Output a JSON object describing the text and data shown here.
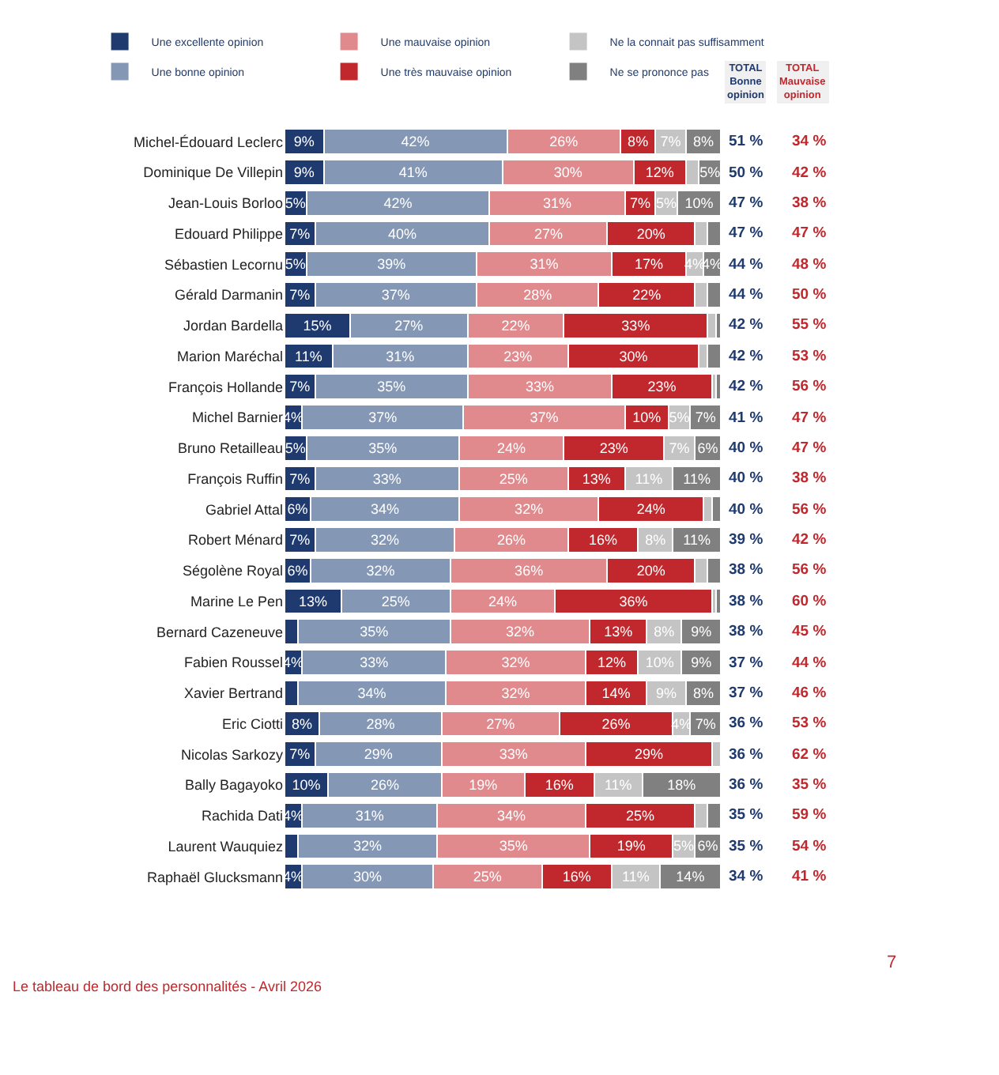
{
  "chart_data": {
    "type": "bar",
    "orientation": "horizontal",
    "stacked": true,
    "legend": "top left",
    "tick_labels": "y",
    "categories": [
      "Michel-Édouard Leclerc",
      "Dominique De Villepin",
      "Jean-Louis Borloo",
      "Edouard Philippe",
      "Sébastien Lecornu",
      "Gérald Darmanin",
      "Jordan Bardella",
      "Marion Maréchal",
      "François Hollande",
      "Michel Barnier",
      "Bruno Retailleau",
      "François Ruffin",
      "Gabriel Attal",
      "Robert Ménard",
      "Ségolène Royal",
      "Marine Le Pen",
      "Bernard Cazeneuve",
      "Fabien Roussel",
      "Xavier Bertrand",
      "Eric Ciotti",
      "Nicolas Sarkozy",
      "Bally Bagayoko",
      "Rachida Dati",
      "Laurent Wauquiez",
      "Raphaël Glucksmann"
    ],
    "series": [
      {
        "name": "Une excellente opinion",
        "color": "#1f3a6e",
        "values": [
          9,
          9,
          5,
          7,
          5,
          7,
          15,
          11,
          7,
          4,
          5,
          7,
          6,
          7,
          6,
          13,
          3,
          4,
          3,
          8,
          7,
          10,
          4,
          3,
          4
        ],
        "value_labels": [
          "9%",
          "9%",
          "5%",
          "7%",
          "5%",
          "7%",
          "15%",
          "11%",
          "7%",
          "4%",
          "5%",
          "7%",
          "6%",
          "7%",
          "6%",
          "13%",
          null,
          "4%",
          null,
          "8%",
          "7%",
          "10%",
          "4%",
          null,
          "4%"
        ]
      },
      {
        "name": "Une bonne opinion",
        "color": "#8497b5",
        "values": [
          42,
          41,
          42,
          40,
          39,
          37,
          27,
          31,
          35,
          37,
          35,
          33,
          34,
          32,
          32,
          25,
          35,
          33,
          34,
          28,
          29,
          26,
          31,
          32,
          30
        ],
        "value_labels": [
          "42%",
          "41%",
          "42%",
          "40%",
          "39%",
          "37%",
          "27%",
          "31%",
          "35%",
          "37%",
          "35%",
          "33%",
          "34%",
          "32%",
          "32%",
          "25%",
          "35%",
          "33%",
          "34%",
          "28%",
          "29%",
          "26%",
          "31%",
          "32%",
          "30%"
        ]
      },
      {
        "name": "Une mauvaise opinion",
        "color": "#e08a8e",
        "values": [
          26,
          30,
          31,
          27,
          31,
          28,
          22,
          23,
          33,
          37,
          24,
          25,
          32,
          26,
          36,
          24,
          32,
          32,
          32,
          27,
          33,
          19,
          34,
          35,
          25
        ],
        "value_labels": [
          "26%",
          "30%",
          "31%",
          "27%",
          "31%",
          "28%",
          "22%",
          "23%",
          "33%",
          "37%",
          "24%",
          "25%",
          "32%",
          "26%",
          "36%",
          "24%",
          "32%",
          "32%",
          "32%",
          "27%",
          "33%",
          "19%",
          "34%",
          "35%",
          "25%"
        ]
      },
      {
        "name": "Une très mauvaise opinion",
        "color": "#c0282d",
        "values": [
          8,
          12,
          7,
          20,
          17,
          22,
          33,
          30,
          23,
          10,
          23,
          13,
          24,
          16,
          20,
          36,
          13,
          12,
          14,
          26,
          29,
          16,
          25,
          19,
          16
        ],
        "value_labels": [
          "8%",
          "12%",
          "7%",
          "20%",
          "17%",
          "22%",
          "33%",
          "30%",
          "23%",
          "10%",
          "23%",
          "13%",
          "24%",
          "16%",
          "20%",
          "36%",
          "13%",
          "12%",
          "14%",
          "26%",
          "29%",
          "16%",
          "25%",
          "19%",
          "16%"
        ]
      },
      {
        "name": "Ne la connait pas suffisamment",
        "color": "#c4c4c4",
        "values": [
          7,
          3,
          5,
          3,
          4,
          3,
          2,
          2,
          1,
          5,
          7,
          11,
          2,
          8,
          3,
          1,
          8,
          10,
          9,
          4,
          2,
          11,
          3,
          5,
          11
        ],
        "value_labels": [
          "7%",
          null,
          "5%",
          null,
          "4%",
          null,
          null,
          null,
          null,
          "5%",
          "7%",
          "11%",
          null,
          "8%",
          null,
          null,
          "8%",
          "10%",
          "9%",
          "4%",
          null,
          "11%",
          null,
          "5%",
          "11%"
        ]
      },
      {
        "name": "Ne se prononce pas",
        "color": "#808080",
        "values": [
          8,
          5,
          10,
          3,
          4,
          3,
          1,
          3,
          1,
          7,
          6,
          11,
          2,
          11,
          3,
          1,
          9,
          9,
          8,
          7,
          null,
          18,
          3,
          6,
          14
        ],
        "value_labels": [
          "8%",
          "5%",
          "10%",
          null,
          "4%",
          null,
          null,
          null,
          null,
          "7%",
          "6%",
          "11%",
          null,
          "11%",
          null,
          null,
          "9%",
          "9%",
          "8%",
          "7%",
          null,
          "18%",
          null,
          "6%",
          "14%"
        ]
      }
    ],
    "annotations": [
      "TOTAL\nBonne\nopinion",
      "TOTAL\nMauvaise\nopinion",
      "Le tableau de bord des personnalités - Avril 2026",
      "7",
      "51 %",
      "34 %",
      "50 %",
      "42 %",
      "47 %",
      "38 %",
      "47 %",
      "47 %",
      "44 %",
      "48 %",
      "44 %",
      "50 %",
      "42 %",
      "55 %",
      "42 %",
      "53 %",
      "42 %",
      "56 %",
      "41 %",
      "47 %",
      "40 %",
      "47 %",
      "40 %",
      "38 %",
      "40 %",
      "56 %",
      "39 %",
      "42 %",
      "38 %",
      "56 %",
      "38 %",
      "60 %",
      "38 %",
      "45 %",
      "37 %",
      "44 %",
      "37 %",
      "46 %",
      "36 %",
      "53 %",
      "36 %",
      "62 %",
      "36 %",
      "35 %",
      "35 %",
      "59 %",
      "35 %",
      "54 %",
      "34 %",
      "41 %"
    ]
  }
}
